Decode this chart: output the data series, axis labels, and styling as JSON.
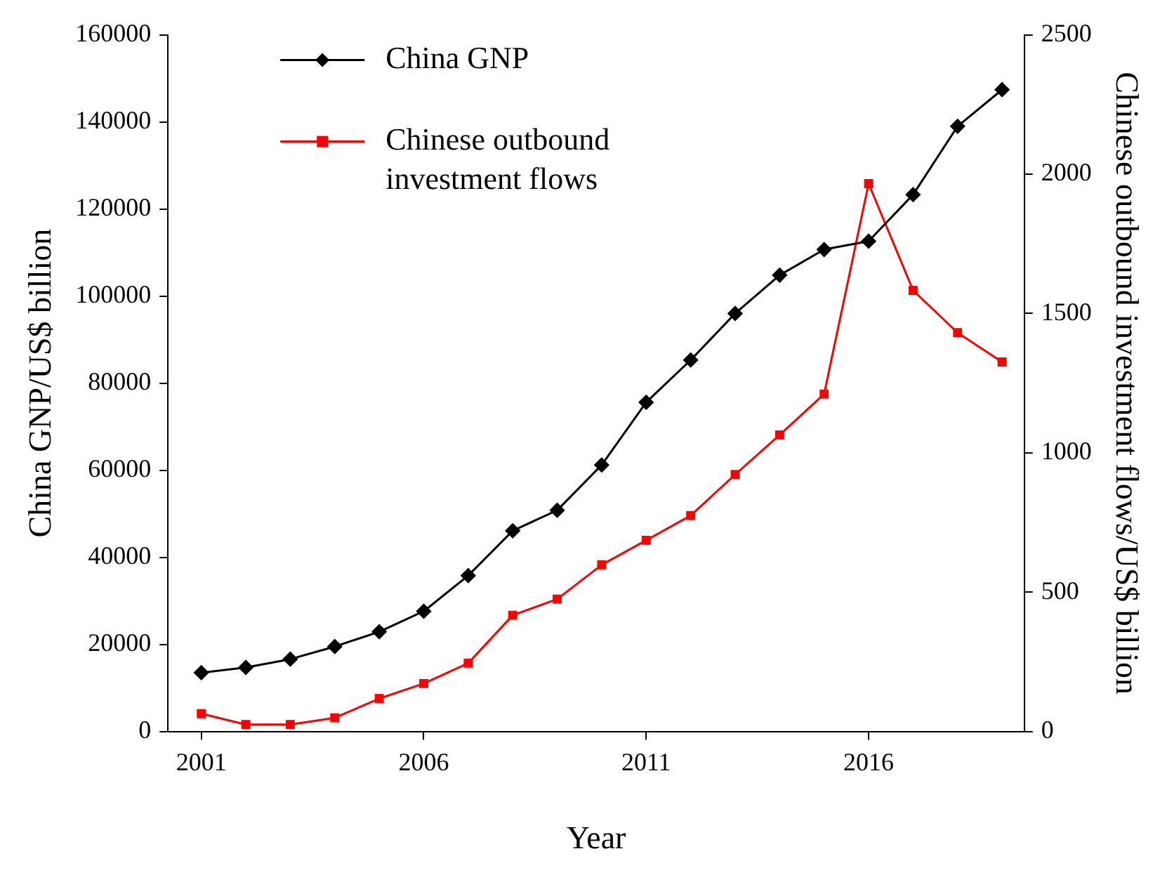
{
  "chart_data": {
    "type": "line",
    "xlabel": "Year",
    "ylabel": "China GNP/US$ billion",
    "y2label": "Chinese outbound investment flows/US$ billion",
    "x": [
      2001,
      2002,
      2003,
      2004,
      2005,
      2006,
      2007,
      2008,
      2009,
      2010,
      2011,
      2012,
      2013,
      2014,
      2015,
      2016,
      2017,
      2018,
      2019
    ],
    "series": [
      {
        "name": "China GNP",
        "color": "#000000",
        "marker": "diamond",
        "values": [
          13500,
          14700,
          16600,
          19500,
          22900,
          27600,
          35800,
          46100,
          50800,
          61200,
          75600,
          85300,
          96000,
          104800,
          110700,
          112600,
          123300,
          139000,
          147400
        ]
      },
      {
        "name": "Chinese outbound investment flows",
        "color": "#ff0000",
        "marker": "square",
        "axis": "y2",
        "values": [
          64,
          25,
          25,
          49,
          118,
          172,
          245,
          417,
          475,
          598,
          686,
          775,
          922,
          1064,
          1211,
          1966,
          1583,
          1431,
          1326
        ]
      }
    ],
    "xlim": [
      2000.25,
      2019.5
    ],
    "xticks": [
      2001,
      2006,
      2011,
      2016
    ],
    "ylim": [
      0,
      160000
    ],
    "yticks": [
      0,
      20000,
      40000,
      60000,
      80000,
      100000,
      120000,
      140000,
      160000
    ],
    "y2lim": [
      0,
      2500
    ],
    "y2ticks": [
      0,
      500,
      1000,
      1500,
      2000,
      2500
    ],
    "grid": false,
    "legend": "top left",
    "line_style": "solid"
  }
}
